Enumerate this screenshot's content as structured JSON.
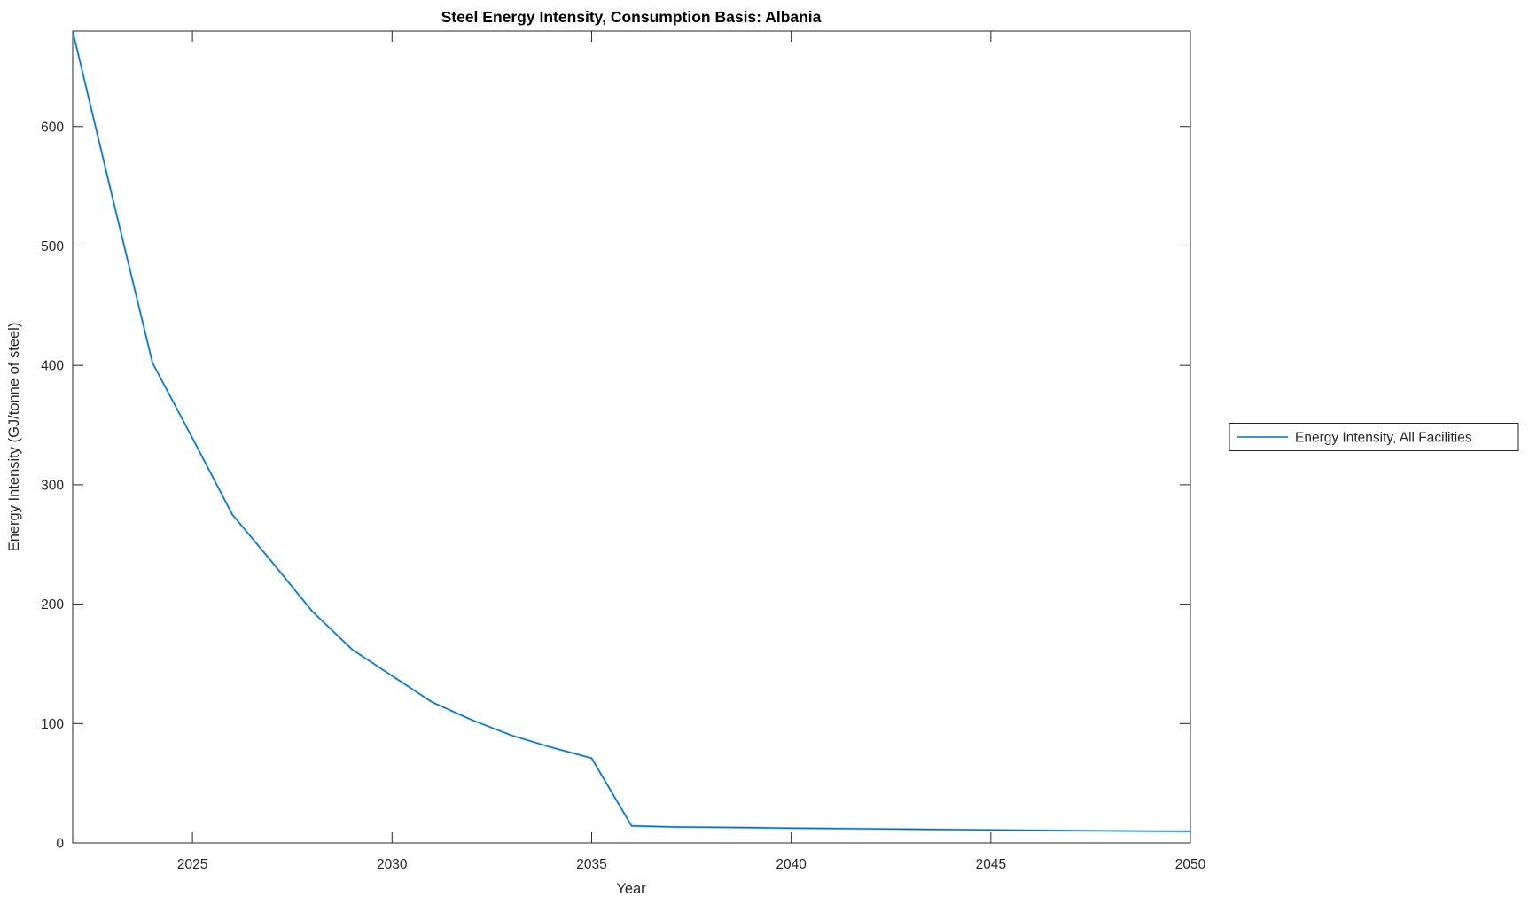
{
  "chart_data": {
    "type": "line",
    "title": "Steel Energy Intensity, Consumption Basis: Albania",
    "xlabel": "Year",
    "ylabel": "Energy Intensity (GJ/tonne of steel)",
    "legend": [
      "Energy Intensity, All Facilities"
    ],
    "legend_position": "outside-right",
    "grid": false,
    "box": true,
    "xlim": [
      2022,
      2050
    ],
    "ylim": [
      0,
      680
    ],
    "x_ticks": [
      2025,
      2030,
      2035,
      2040,
      2045,
      2050
    ],
    "y_ticks": [
      0,
      100,
      200,
      300,
      400,
      500,
      600
    ],
    "line_color": "#0072BD",
    "line_halo_color": "#7ab4e0",
    "axis_color": "#262626",
    "background_color": "#ffffff",
    "series": [
      {
        "name": "Energy Intensity, All Facilities",
        "x": [
          2022,
          2023,
          2024,
          2025,
          2026,
          2027,
          2028,
          2029,
          2030,
          2031,
          2032,
          2033,
          2034,
          2035,
          2036,
          2037,
          2038,
          2039,
          2040,
          2041,
          2042,
          2043,
          2044,
          2045,
          2046,
          2047,
          2048,
          2049,
          2050
        ],
        "y": [
          680,
          540,
          402,
          339,
          275,
          235,
          194,
          162,
          140,
          118,
          103,
          90,
          80,
          71,
          14.3,
          13.4,
          13.1,
          12.8,
          12.4,
          12.1,
          11.8,
          11.5,
          11.2,
          10.9,
          10.6,
          10.3,
          10.1,
          9.9,
          9.7
        ]
      }
    ]
  }
}
